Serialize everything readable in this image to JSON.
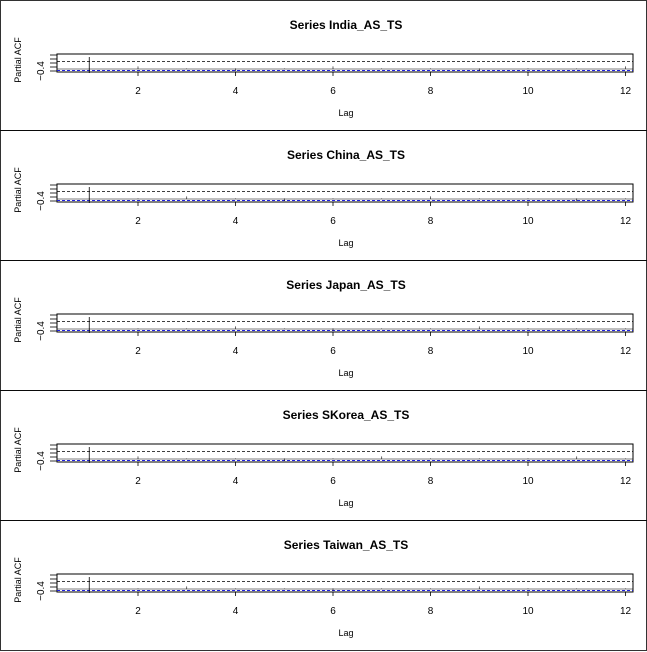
{
  "chart_data": [
    {
      "type": "bar",
      "title": "Series  India_AS_TS",
      "xlabel": "Lag",
      "ylabel": "Partial ACF",
      "x_ticks": [
        2,
        4,
        6,
        8,
        10,
        12
      ],
      "y_tick_label": "−0.4",
      "xlim": [
        0.5,
        12.5
      ],
      "x": [
        1,
        2,
        3,
        4,
        5,
        6,
        7,
        8,
        9,
        10,
        11,
        12
      ],
      "values": [
        -0.02,
        0.01,
        0.0,
        -0.01,
        0.0,
        0.01,
        0.0,
        0.0,
        -0.01,
        0.0,
        0.0,
        0.01
      ],
      "conf_band_color": "#1f1fe0",
      "grid": false
    },
    {
      "type": "bar",
      "title": "Series  China_AS_TS",
      "xlabel": "Lag",
      "ylabel": "Partial ACF",
      "x_ticks": [
        2,
        4,
        6,
        8,
        10,
        12
      ],
      "y_tick_label": "−0.4",
      "xlim": [
        0.5,
        12.5
      ],
      "x": [
        1,
        2,
        3,
        4,
        5,
        6,
        7,
        8,
        9,
        10,
        11,
        12
      ],
      "values": [
        -0.02,
        0.0,
        0.01,
        0.0,
        -0.01,
        0.0,
        0.0,
        0.01,
        0.0,
        0.0,
        -0.01,
        0.0
      ],
      "conf_band_color": "#1f1fe0",
      "grid": false
    },
    {
      "type": "bar",
      "title": "Series  Japan_AS_TS",
      "xlabel": "Lag",
      "ylabel": "Partial ACF",
      "x_ticks": [
        2,
        4,
        6,
        8,
        10,
        12
      ],
      "y_tick_label": "−0.4",
      "xlim": [
        0.5,
        12.5
      ],
      "x": [
        1,
        2,
        3,
        4,
        5,
        6,
        7,
        8,
        9,
        10,
        11,
        12
      ],
      "values": [
        -0.02,
        0.0,
        0.0,
        0.01,
        0.0,
        -0.01,
        0.0,
        0.0,
        0.01,
        0.0,
        0.0,
        0.0
      ],
      "conf_band_color": "#1f1fe0",
      "grid": false
    },
    {
      "type": "bar",
      "title": "Series  SKorea_AS_TS",
      "xlabel": "Lag",
      "ylabel": "Partial ACF",
      "x_ticks": [
        2,
        4,
        6,
        8,
        10,
        12
      ],
      "y_tick_label": "−0.4",
      "xlim": [
        0.5,
        12.5
      ],
      "x": [
        1,
        2,
        3,
        4,
        5,
        6,
        7,
        8,
        9,
        10,
        11,
        12
      ],
      "values": [
        -0.02,
        0.01,
        0.0,
        0.0,
        -0.01,
        0.0,
        0.01,
        0.0,
        0.0,
        0.0,
        0.01,
        0.0
      ],
      "conf_band_color": "#1f1fe0",
      "grid": false
    },
    {
      "type": "bar",
      "title": "Series  Taiwan_AS_TS",
      "xlabel": "Lag",
      "ylabel": "Partial ACF",
      "x_ticks": [
        2,
        4,
        6,
        8,
        10,
        12
      ],
      "y_tick_label": "−0.4",
      "xlim": [
        0.5,
        12.5
      ],
      "x": [
        1,
        2,
        3,
        4,
        5,
        6,
        7,
        8,
        9,
        10,
        11,
        12
      ],
      "values": [
        -0.02,
        0.0,
        0.01,
        0.0,
        0.0,
        -0.01,
        0.0,
        0.0,
        0.01,
        0.0,
        0.0,
        0.0
      ],
      "conf_band_color": "#1f1fe0",
      "grid": false
    }
  ]
}
